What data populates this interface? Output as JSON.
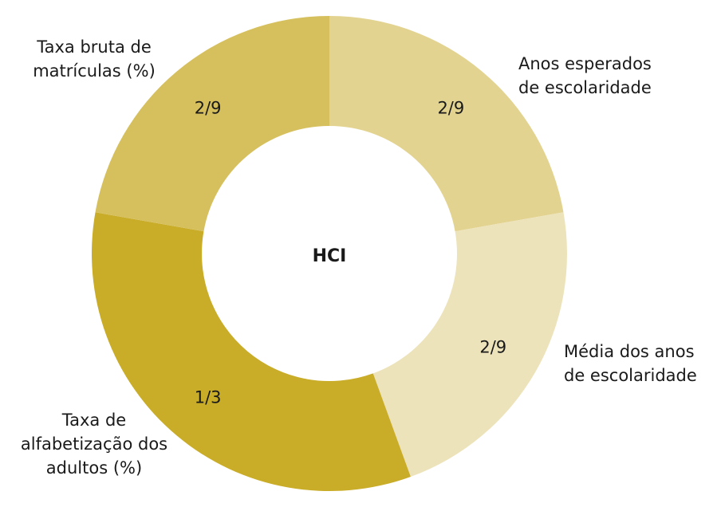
{
  "chart_data": {
    "type": "pie",
    "variant": "donut",
    "center_label": "HCI",
    "slices": [
      {
        "category": "Anos esperados de escolaridade",
        "category_lines": [
          "Anos esperados",
          "de escolaridade"
        ],
        "value": 0.2222,
        "value_label": "2/9",
        "color": "#e3d390"
      },
      {
        "category": "Média dos anos de escolaridade",
        "category_lines": [
          "Média dos anos",
          "de escolaridade"
        ],
        "value": 0.2222,
        "value_label": "2/9",
        "color": "#ede3ba"
      },
      {
        "category": "Taxa de alfabetização dos adultos (%)",
        "category_lines": [
          "Taxa de",
          "alfabetização dos",
          "adultos (%)"
        ],
        "value": 0.3333,
        "value_label": "1/3",
        "color": "#c9ac28"
      },
      {
        "category": "Taxa bruta de matrículas (%)",
        "category_lines": [
          "Taxa bruta de",
          "matrículas (%)"
        ],
        "value": 0.2222,
        "value_label": "2/9",
        "color": "#d6c05e"
      }
    ]
  }
}
